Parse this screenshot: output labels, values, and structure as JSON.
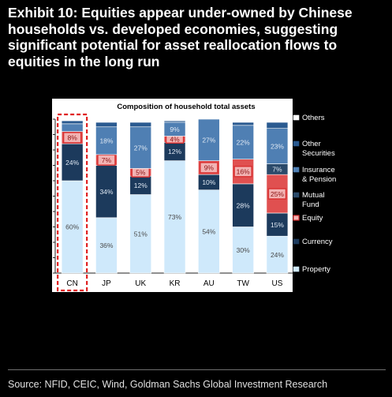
{
  "title": "Exhibit 10: Equities appear under-owned by Chinese households vs. developed economies, suggesting significant potential for asset reallocation flows to equities in the long run",
  "source": "Source: NFID, CEIC, Wind, Goldman Sachs Global Investment Research",
  "chart_data": {
    "type": "bar",
    "stacked": true,
    "percent": true,
    "title": "Composition of household total assets",
    "categories": [
      "CN",
      "JP",
      "UK",
      "KR",
      "AU",
      "TW",
      "US"
    ],
    "highlight_category": "CN",
    "ylim": [
      0,
      100
    ],
    "yticks": [
      "0%",
      "10%",
      "20%",
      "30%",
      "40%",
      "50%",
      "60%",
      "70%",
      "80%",
      "90%",
      "100%"
    ],
    "series": [
      {
        "name": "Property",
        "color": "#cfe9fb",
        "values": [
          60,
          36,
          51,
          73,
          54,
          30,
          24
        ],
        "labels": [
          "60%",
          "36%",
          "51%",
          "73%",
          "54%",
          "30%",
          "24%"
        ]
      },
      {
        "name": "Currency",
        "color": "#1c3a5c",
        "values": [
          24,
          34,
          12,
          12,
          10,
          28,
          15
        ],
        "labels": [
          "24%",
          "34%",
          "12%",
          "12%",
          "10%",
          "28%",
          "15%"
        ]
      },
      {
        "name": "Equity",
        "color": "#e05050",
        "values": [
          8,
          7,
          5,
          4,
          9,
          16,
          25
        ],
        "labels": [
          "8%",
          "7%",
          "5%",
          "4%",
          "9%",
          "16%",
          "25%"
        ]
      },
      {
        "name": "Mutual Fund",
        "color": "#2b4a6a",
        "values": [
          0,
          0,
          0,
          0,
          0,
          0,
          7
        ],
        "labels": [
          "",
          "",
          "",
          "",
          "",
          "",
          "7%"
        ]
      },
      {
        "name": "Insurance & Pension",
        "color": "#4f7fb3",
        "values": [
          5,
          18,
          27,
          9,
          27,
          22,
          23
        ],
        "labels": [
          "",
          "18%",
          "27%",
          "9%",
          "27%",
          "22%",
          "23%"
        ]
      },
      {
        "name": "Other Securities",
        "color": "#2a5a90",
        "values": [
          2,
          3,
          3,
          1,
          0,
          2,
          4
        ],
        "labels": [
          "",
          "",
          "",
          "",
          "",
          "",
          ""
        ]
      },
      {
        "name": "Others",
        "color": "#ffffff",
        "values": [
          1,
          2,
          2,
          1,
          0,
          2,
          2
        ],
        "labels": [
          "",
          "",
          "",
          "",
          "",
          "",
          ""
        ]
      }
    ],
    "legend": {
      "position": "right",
      "order": [
        "Others",
        "Other Securities",
        "Insurance & Pension",
        "Mutual Fund",
        "Equity",
        "Currency",
        "Property"
      ],
      "labels": [
        {
          "series": "Others",
          "lines": [
            "Others"
          ]
        },
        {
          "series": "Other Securities",
          "lines": [
            "Other",
            "Securities"
          ]
        },
        {
          "series": "Insurance & Pension",
          "lines": [
            "Insurance",
            "& Pension"
          ]
        },
        {
          "series": "Mutual Fund",
          "lines": [
            "Mutual",
            "Fund"
          ]
        },
        {
          "series": "Equity",
          "lines": [
            "Equity"
          ]
        },
        {
          "series": "Currency",
          "lines": [
            "Currency"
          ]
        },
        {
          "series": "Property",
          "lines": [
            "Property"
          ]
        }
      ]
    },
    "colors": {
      "equity_label_bg": "#f2b3b3",
      "equity_label_border": "#d83030",
      "equity_label_text": "#8a1010",
      "highlight_border": "#e02020",
      "dark_label_text": "#dfe8f3",
      "light_label_text": "#4a4a4a",
      "plot_background": "#ffffff",
      "axis_color": "#222222"
    }
  }
}
